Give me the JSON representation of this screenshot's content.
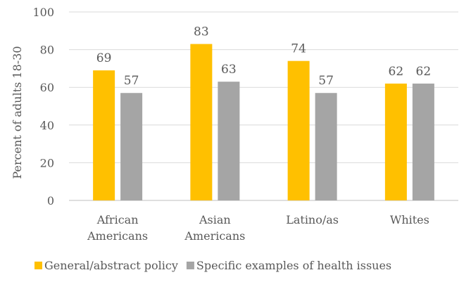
{
  "chart_data": {
    "type": "bar",
    "title": "",
    "xlabel": "",
    "ylabel": "Percent of adults 18-30",
    "ylim": [
      0,
      100
    ],
    "yticks": [
      0,
      20,
      40,
      60,
      80,
      100
    ],
    "grid": true,
    "legend_position": "bottom",
    "categories": [
      [
        "African",
        "Americans"
      ],
      [
        "Asian",
        "Americans"
      ],
      [
        "Latino/as"
      ],
      [
        "Whites"
      ]
    ],
    "series": [
      {
        "name": "General/abstract policy",
        "color": "#FFC000",
        "values": [
          69,
          83,
          74,
          62
        ]
      },
      {
        "name": "Specific examples of health issues",
        "color": "#A5A5A5",
        "values": [
          57,
          63,
          57,
          62
        ]
      }
    ]
  }
}
